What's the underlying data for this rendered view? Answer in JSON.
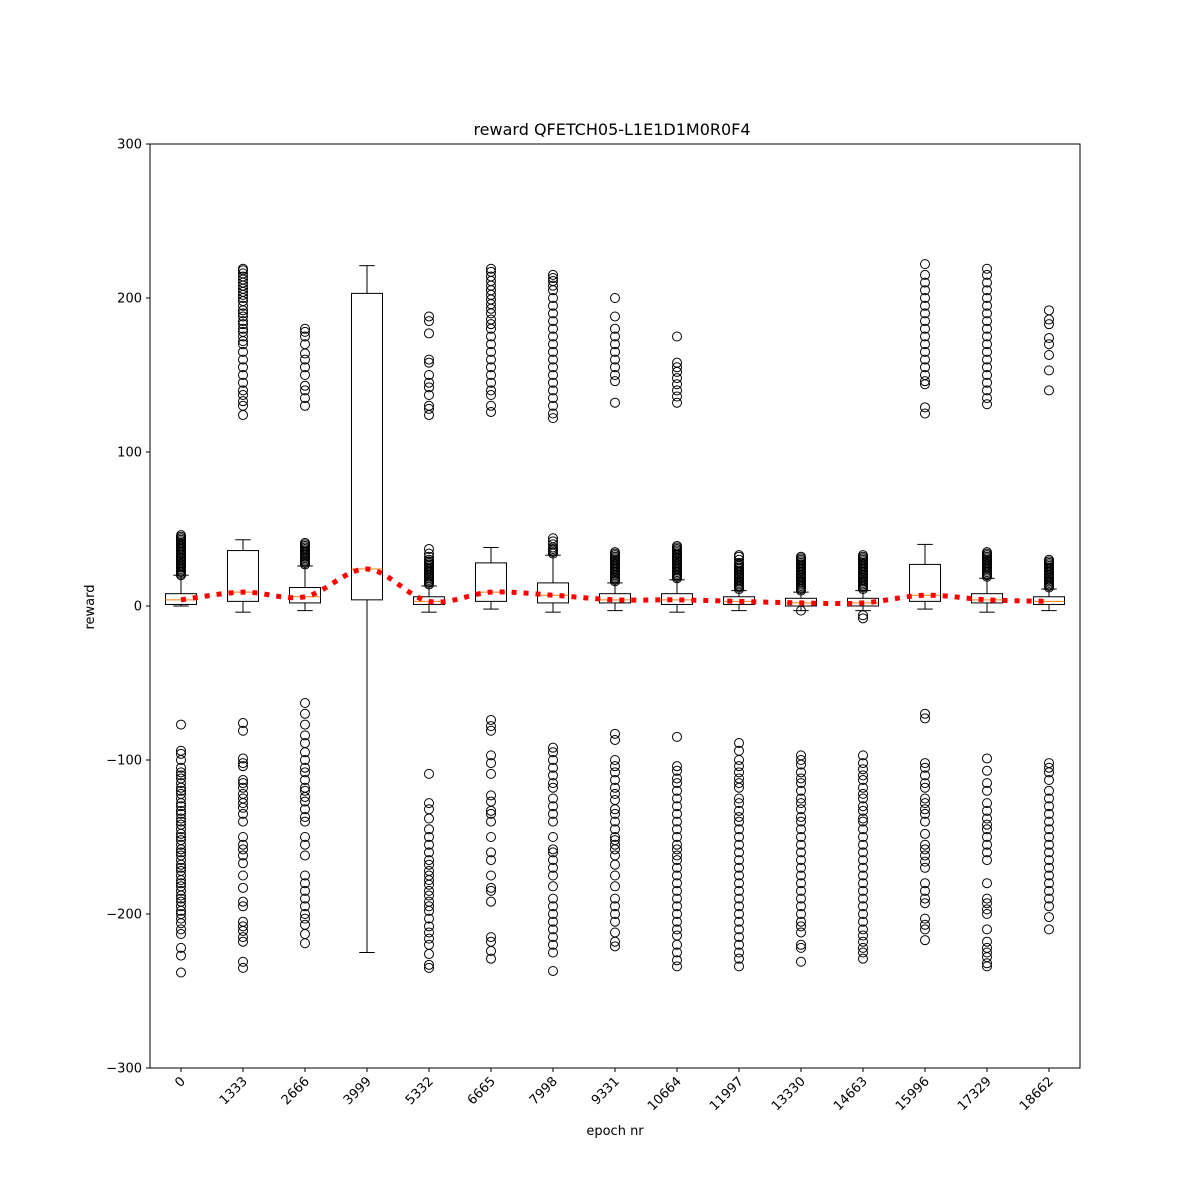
{
  "chart_data": {
    "type": "box",
    "title": "reward QFETCH05-L1E1D1M0R0F4",
    "xlabel": "epoch nr",
    "ylabel": "reward",
    "ylim": [
      -300,
      300
    ],
    "yticks": [
      -300,
      -200,
      -100,
      0,
      100,
      200,
      300
    ],
    "grid": false,
    "categories": [
      "0",
      "1333",
      "2666",
      "3999",
      "5332",
      "6665",
      "7998",
      "9331",
      "10664",
      "11997",
      "13330",
      "14663",
      "15996",
      "17329",
      "18662"
    ],
    "boxes": [
      {
        "q1": 1,
        "median": 4,
        "q3": 8,
        "whisker_low": 0,
        "whisker_high": 20,
        "mean": 4,
        "outliers_high": [
          20,
          21,
          22,
          23,
          24,
          25,
          26,
          27,
          28,
          29,
          30,
          31,
          32,
          33,
          34,
          35,
          36,
          37,
          38,
          39,
          40,
          41,
          42,
          43,
          44,
          45,
          46
        ],
        "outliers_low": [
          -77,
          -94,
          -96,
          -100,
          -105,
          -108,
          -110,
          -112,
          -115,
          -118,
          -120,
          -122,
          -125,
          -128,
          -130,
          -133,
          -135,
          -138,
          -140,
          -142,
          -145,
          -148,
          -150,
          -152,
          -155,
          -158,
          -160,
          -162,
          -165,
          -168,
          -170,
          -172,
          -175,
          -178,
          -180,
          -182,
          -185,
          -188,
          -190,
          -192,
          -195,
          -198,
          -200,
          -203,
          -206,
          -210,
          -213,
          -222,
          -227,
          -238
        ]
      },
      {
        "q1": 3,
        "median": 9,
        "q3": 36,
        "whisker_low": -4,
        "whisker_high": 43,
        "mean": 9,
        "outliers_high": [
          124,
          130,
          133,
          137,
          140,
          145,
          150,
          155,
          160,
          165,
          170,
          172,
          175,
          178,
          180,
          183,
          185,
          188,
          190,
          192,
          195,
          198,
          200,
          202,
          204,
          206,
          208,
          210,
          212,
          214,
          216,
          218,
          219
        ],
        "outliers_low": [
          -76,
          -81,
          -99,
          -102,
          -104,
          -113,
          -115,
          -118,
          -122,
          -125,
          -128,
          -131,
          -135,
          -140,
          -150,
          -155,
          -158,
          -162,
          -167,
          -175,
          -183,
          -192,
          -195,
          -205,
          -208,
          -211,
          -215,
          -218,
          -231,
          -235
        ]
      },
      {
        "q1": 2,
        "median": 6,
        "q3": 12,
        "whisker_low": -3,
        "whisker_high": 26,
        "mean": 6,
        "outliers_high": [
          27,
          28,
          29,
          30,
          31,
          32,
          33,
          34,
          35,
          36,
          37,
          38,
          39,
          40,
          41,
          130,
          135,
          140,
          143,
          150,
          155,
          160,
          164,
          170,
          175,
          178,
          180
        ],
        "outliers_low": [
          -63,
          -70,
          -77,
          -84,
          -89,
          -95,
          -100,
          -105,
          -108,
          -113,
          -118,
          -120,
          -124,
          -127,
          -132,
          -137,
          -140,
          -150,
          -155,
          -162,
          -175,
          -180,
          -185,
          -190,
          -195,
          -200,
          -203,
          -207,
          -213,
          -219
        ]
      },
      {
        "q1": 4,
        "median": 24,
        "q3": 203,
        "whisker_low": -225,
        "whisker_high": 221,
        "mean": 24,
        "outliers_high": [],
        "outliers_low": []
      },
      {
        "q1": 1,
        "median": 3,
        "q3": 6,
        "whisker_low": -4,
        "whisker_high": 13,
        "mean": 3,
        "outliers_high": [
          14,
          15,
          16,
          17,
          18,
          19,
          20,
          21,
          22,
          23,
          24,
          25,
          26,
          27,
          28,
          29,
          30,
          32,
          34,
          37,
          124,
          128,
          130,
          137,
          142,
          145,
          150,
          158,
          160,
          177,
          185,
          188
        ],
        "outliers_low": [
          -109,
          -128,
          -132,
          -138,
          -145,
          -150,
          -155,
          -160,
          -165,
          -168,
          -172,
          -175,
          -178,
          -181,
          -185,
          -188,
          -192,
          -195,
          -198,
          -203,
          -208,
          -212,
          -216,
          -220,
          -226,
          -233,
          -235
        ]
      },
      {
        "q1": 3,
        "median": 9,
        "q3": 28,
        "whisker_low": -2,
        "whisker_high": 38,
        "mean": 9,
        "outliers_high": [
          126,
          130,
          137,
          140,
          145,
          150,
          155,
          160,
          165,
          170,
          175,
          180,
          183,
          186,
          190,
          193,
          196,
          199,
          202,
          205,
          208,
          211,
          214,
          217,
          219
        ],
        "outliers_low": [
          -74,
          -78,
          -81,
          -97,
          -102,
          -109,
          -123,
          -127,
          -133,
          -135,
          -140,
          -150,
          -160,
          -165,
          -175,
          -183,
          -185,
          -192,
          -215,
          -218,
          -224,
          -229
        ]
      },
      {
        "q1": 2,
        "median": 7,
        "q3": 15,
        "whisker_low": -4,
        "whisker_high": 33,
        "mean": 7,
        "outliers_high": [
          34,
          35,
          36,
          37,
          38,
          40,
          42,
          44,
          122,
          125,
          130,
          135,
          140,
          145,
          150,
          155,
          160,
          165,
          170,
          175,
          180,
          185,
          190,
          195,
          200,
          205,
          208,
          211,
          213,
          215
        ],
        "outliers_low": [
          -92,
          -95,
          -100,
          -105,
          -110,
          -115,
          -118,
          -125,
          -130,
          -135,
          -140,
          -150,
          -158,
          -160,
          -165,
          -170,
          -175,
          -182,
          -190,
          -195,
          -200,
          -205,
          -210,
          -215,
          -220,
          -225,
          -237
        ]
      },
      {
        "q1": 2,
        "median": 4,
        "q3": 8,
        "whisker_low": -3,
        "whisker_high": 15,
        "mean": 4,
        "outliers_high": [
          16,
          17,
          18,
          19,
          20,
          21,
          22,
          23,
          24,
          25,
          26,
          27,
          28,
          29,
          30,
          31,
          32,
          33,
          34,
          35,
          132,
          146,
          150,
          155,
          160,
          165,
          170,
          175,
          180,
          188,
          200
        ],
        "outliers_low": [
          -83,
          -87,
          -100,
          -104,
          -108,
          -113,
          -118,
          -122,
          -126,
          -132,
          -135,
          -140,
          -145,
          -150,
          -152,
          -155,
          -158,
          -162,
          -168,
          -175,
          -182,
          -190,
          -195,
          -200,
          -205,
          -212,
          -218,
          -221
        ]
      },
      {
        "q1": 1,
        "median": 4,
        "q3": 8,
        "whisker_low": -4,
        "whisker_high": 17,
        "mean": 4,
        "outliers_high": [
          18,
          19,
          20,
          21,
          22,
          23,
          24,
          25,
          26,
          27,
          28,
          29,
          30,
          31,
          32,
          33,
          34,
          35,
          36,
          37,
          38,
          39,
          132,
          136,
          140,
          144,
          148,
          152,
          155,
          158,
          175
        ],
        "outliers_low": [
          -85,
          -104,
          -107,
          -112,
          -115,
          -120,
          -125,
          -130,
          -135,
          -140,
          -145,
          -150,
          -155,
          -158,
          -162,
          -165,
          -170,
          -175,
          -180,
          -185,
          -190,
          -195,
          -200,
          -205,
          -210,
          -214,
          -220,
          -225,
          -230,
          -234
        ]
      },
      {
        "q1": 1,
        "median": 3,
        "q3": 6,
        "whisker_low": -3,
        "whisker_high": 10,
        "mean": 3,
        "outliers_high": [
          11,
          12,
          13,
          14,
          15,
          16,
          17,
          18,
          19,
          20,
          21,
          22,
          23,
          24,
          25,
          26,
          27,
          28,
          30,
          32,
          33
        ],
        "outliers_low": [
          -89,
          -94,
          -100,
          -104,
          -108,
          -112,
          -115,
          -118,
          -125,
          -128,
          -133,
          -137,
          -140,
          -145,
          -150,
          -155,
          -160,
          -165,
          -170,
          -175,
          -180,
          -185,
          -190,
          -195,
          -200,
          -205,
          -210,
          -215,
          -220,
          -225,
          -229,
          -234
        ]
      },
      {
        "q1": 0,
        "median": 2,
        "q3": 5,
        "whisker_low": -3,
        "whisker_high": 9,
        "mean": 2,
        "outliers_high": [
          10,
          11,
          12,
          13,
          14,
          15,
          16,
          17,
          18,
          19,
          20,
          21,
          22,
          23,
          24,
          25,
          26,
          27,
          28,
          29,
          30,
          31,
          32
        ],
        "outliers_low": [
          -3,
          -97,
          -100,
          -103,
          -108,
          -112,
          -115,
          -120,
          -125,
          -128,
          -132,
          -137,
          -140,
          -145,
          -150,
          -155,
          -160,
          -165,
          -170,
          -175,
          -180,
          -185,
          -190,
          -195,
          -200,
          -205,
          -208,
          -212,
          -220,
          -222,
          -231
        ]
      },
      {
        "q1": 0,
        "median": 2,
        "q3": 5,
        "whisker_low": -3,
        "whisker_high": 10,
        "mean": 2,
        "outliers_high": [
          11,
          12,
          13,
          14,
          15,
          16,
          17,
          18,
          19,
          20,
          21,
          22,
          23,
          24,
          25,
          26,
          27,
          28,
          29,
          30,
          31,
          32,
          33
        ],
        "outliers_low": [
          -6,
          -8,
          -97,
          -102,
          -106,
          -110,
          -113,
          -118,
          -122,
          -125,
          -130,
          -133,
          -138,
          -140,
          -145,
          -150,
          -155,
          -160,
          -165,
          -170,
          -175,
          -180,
          -185,
          -190,
          -195,
          -200,
          -205,
          -210,
          -214,
          -218,
          -222,
          -225,
          -229
        ]
      },
      {
        "q1": 3,
        "median": 7,
        "q3": 27,
        "whisker_low": -2,
        "whisker_high": 40,
        "mean": 7,
        "outliers_high": [
          125,
          129,
          144,
          146,
          150,
          155,
          160,
          165,
          170,
          175,
          180,
          185,
          190,
          195,
          200,
          205,
          210,
          215,
          222
        ],
        "outliers_low": [
          -70,
          -73,
          -102,
          -105,
          -110,
          -115,
          -118,
          -125,
          -128,
          -132,
          -135,
          -140,
          -148,
          -155,
          -158,
          -162,
          -166,
          -170,
          -180,
          -185,
          -190,
          -193,
          -203,
          -207,
          -210,
          -217
        ]
      },
      {
        "q1": 2,
        "median": 4,
        "q3": 8,
        "whisker_low": -4,
        "whisker_high": 18,
        "mean": 4,
        "outliers_high": [
          19,
          20,
          21,
          22,
          23,
          24,
          25,
          26,
          27,
          28,
          29,
          30,
          31,
          32,
          33,
          34,
          35,
          131,
          135,
          140,
          145,
          150,
          155,
          160,
          165,
          170,
          175,
          180,
          185,
          190,
          195,
          200,
          205,
          210,
          215,
          219
        ],
        "outliers_low": [
          -99,
          -107,
          -115,
          -120,
          -128,
          -133,
          -138,
          -142,
          -145,
          -150,
          -155,
          -160,
          -165,
          -180,
          -190,
          -193,
          -197,
          -200,
          -210,
          -218,
          -222,
          -225,
          -228,
          -232,
          -234
        ]
      },
      {
        "q1": 1,
        "median": 3,
        "q3": 6,
        "whisker_low": -3,
        "whisker_high": 11,
        "mean": 3,
        "outliers_high": [
          12,
          13,
          14,
          15,
          16,
          17,
          18,
          19,
          20,
          21,
          22,
          23,
          24,
          25,
          26,
          27,
          28,
          29,
          30,
          140,
          153,
          163,
          170,
          174,
          183,
          186,
          192
        ],
        "outliers_low": [
          -102,
          -105,
          -108,
          -113,
          -120,
          -125,
          -130,
          -135,
          -140,
          -145,
          -150,
          -155,
          -160,
          -165,
          -170,
          -175,
          -180,
          -185,
          -190,
          -195,
          -202,
          -210
        ]
      }
    ],
    "mean_line": {
      "color": "#ff0000",
      "style": "dotted"
    },
    "median_color": "#ff7f0e",
    "box_color": "#000000"
  }
}
